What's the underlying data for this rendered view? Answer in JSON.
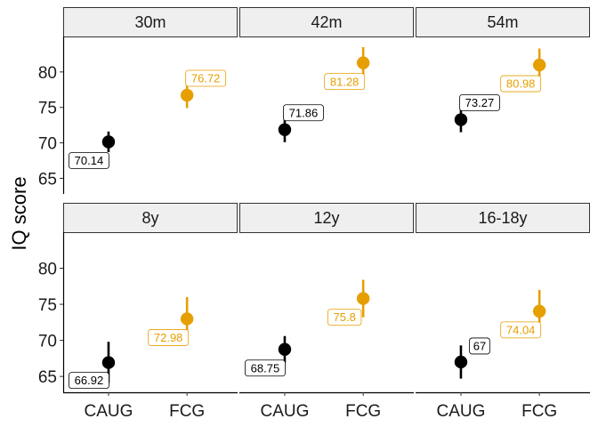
{
  "chart_data": {
    "type": "scatter",
    "ylabel": "IQ score",
    "xlabel": "",
    "ylim": [
      62.8,
      85.0
    ],
    "y_ticks": [
      65,
      70,
      75,
      80
    ],
    "categories": [
      "CAUG",
      "FCG"
    ],
    "colors": {
      "CAUG": "#000000",
      "FCG": "#E69F00"
    },
    "grid": false,
    "legend": "none",
    "panels": [
      {
        "title": "30m",
        "points": [
          {
            "group": "CAUG",
            "value": 70.14,
            "label": "70.14",
            "ci": [
              68.7,
              71.6
            ]
          },
          {
            "group": "FCG",
            "value": 76.72,
            "label": "76.72",
            "ci": [
              74.9,
              78.5
            ]
          }
        ]
      },
      {
        "title": "42m",
        "points": [
          {
            "group": "CAUG",
            "value": 71.86,
            "label": "71.86",
            "ci": [
              70.1,
              73.6
            ]
          },
          {
            "group": "FCG",
            "value": 81.28,
            "label": "81.28",
            "ci": [
              79.1,
              83.5
            ]
          }
        ]
      },
      {
        "title": "54m",
        "points": [
          {
            "group": "CAUG",
            "value": 73.27,
            "label": "73.27",
            "ci": [
              71.5,
              75.0
            ]
          },
          {
            "group": "FCG",
            "value": 80.98,
            "label": "80.98",
            "ci": [
              78.7,
              83.3
            ]
          }
        ]
      },
      {
        "title": "8y",
        "points": [
          {
            "group": "CAUG",
            "value": 66.92,
            "label": "66.92",
            "ci": [
              64.1,
              69.8
            ]
          },
          {
            "group": "FCG",
            "value": 72.98,
            "label": "72.98",
            "ci": [
              70.0,
              76.0
            ]
          }
        ]
      },
      {
        "title": "12y",
        "points": [
          {
            "group": "CAUG",
            "value": 68.75,
            "label": "68.75",
            "ci": [
              66.9,
              70.6
            ]
          },
          {
            "group": "FCG",
            "value": 75.8,
            "label": "75.8",
            "ci": [
              73.2,
              78.4
            ]
          }
        ]
      },
      {
        "title": "16-18y",
        "points": [
          {
            "group": "CAUG",
            "value": 67,
            "label": "67",
            "ci": [
              64.7,
              69.3
            ]
          },
          {
            "group": "FCG",
            "value": 74.04,
            "label": "74.04",
            "ci": [
              71.1,
              77.0
            ]
          }
        ]
      }
    ]
  }
}
